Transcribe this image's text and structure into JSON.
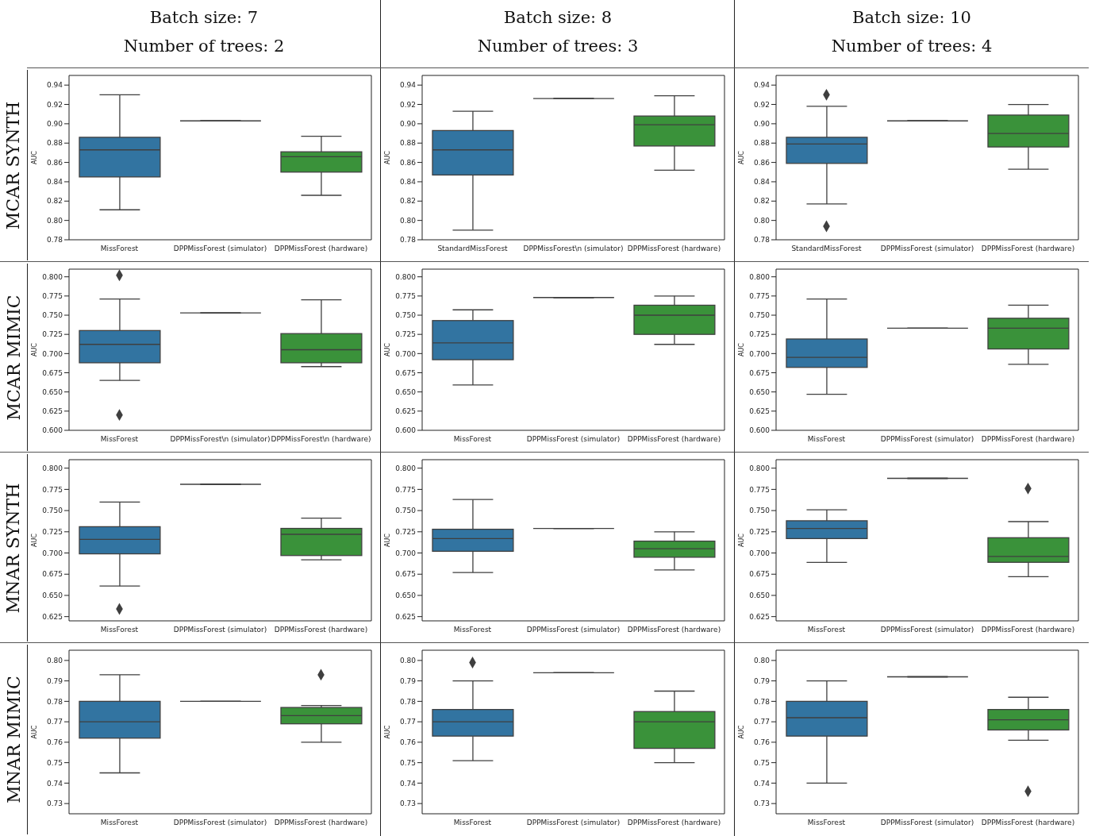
{
  "chart_data": [
    {
      "type": "box",
      "title": "Batch size: 7",
      "subtitle": "Number of trees: 2",
      "annotations": [
        "MCAR SYNTH"
      ],
      "ylabel": "AUC",
      "categories": [
        "MissForest",
        "DPPMissForest (simulator)",
        "DPPMissForest (hardware)"
      ],
      "colors": [
        "#3274a1",
        "#3f3f3f",
        "#3a923a"
      ],
      "ylim": [
        0.78,
        0.95
      ],
      "yticks": [
        0.78,
        {
          "value": 0.8,
          "label": "0.80"
        },
        0.82,
        0.84,
        0.86,
        0.88,
        {
          "value": 0.9,
          "label": "0.90"
        },
        0.92,
        0.94
      ],
      "boxes": [
        {
          "low": 0.811,
          "q1": 0.845,
          "median": 0.873,
          "q3": 0.886,
          "high": 0.93
        },
        {
          "low": 0.903,
          "q1": 0.903,
          "median": 0.903,
          "q3": 0.903,
          "high": 0.903
        },
        {
          "low": 0.826,
          "q1": 0.85,
          "median": 0.866,
          "q3": 0.871,
          "high": 0.887
        }
      ]
    },
    {
      "type": "box",
      "title": "Batch size: 8",
      "subtitle": "Number of trees: 3",
      "ylabel": "AUC",
      "categories": [
        "StandardMissForest",
        "DPPMissForest\\n (simulator)",
        "DPPMissForest (hardware)"
      ],
      "colors": [
        "#3274a1",
        "#3f3f3f",
        "#3a923a"
      ],
      "ylim": [
        0.78,
        0.95
      ],
      "yticks": [
        0.78,
        {
          "value": 0.8,
          "label": "0.80"
        },
        0.82,
        0.84,
        0.86,
        0.88,
        {
          "value": 0.9,
          "label": "0.90"
        },
        0.92,
        0.94
      ],
      "boxes": [
        {
          "low": 0.79,
          "q1": 0.847,
          "median": 0.873,
          "q3": 0.893,
          "high": 0.913
        },
        {
          "low": 0.926,
          "q1": 0.926,
          "median": 0.926,
          "q3": 0.926,
          "high": 0.926
        },
        {
          "low": 0.852,
          "q1": 0.877,
          "median": 0.899,
          "q3": 0.908,
          "high": 0.929
        }
      ]
    },
    {
      "type": "box",
      "title": "Batch size: 10",
      "subtitle": "Number of trees: 4",
      "ylabel": "AUC",
      "categories": [
        "StandardMissForest",
        "DPPMissForest (simulator)",
        "DPPMissForest (hardware)"
      ],
      "colors": [
        "#3274a1",
        "#3f3f3f",
        "#3a923a"
      ],
      "ylim": [
        0.78,
        0.95
      ],
      "yticks": [
        0.78,
        {
          "value": 0.8,
          "label": "0.80"
        },
        0.82,
        0.84,
        0.86,
        0.88,
        {
          "value": 0.9,
          "label": "0.90"
        },
        0.92,
        0.94
      ],
      "boxes": [
        {
          "low": 0.817,
          "q1": 0.859,
          "median": 0.879,
          "q3": 0.886,
          "high": 0.918,
          "outliers": [
            0.93,
            0.794
          ]
        },
        {
          "low": 0.903,
          "q1": 0.903,
          "median": 0.903,
          "q3": 0.903,
          "high": 0.903
        },
        {
          "low": 0.853,
          "q1": 0.876,
          "median": 0.89,
          "q3": 0.909,
          "high": 0.92
        }
      ]
    },
    {
      "type": "box",
      "annotations": [
        "MCAR MIMIC"
      ],
      "ylabel": "AUC",
      "categories": [
        "MissForest",
        "DPPMissForest\\n (simulator)",
        "DPPMissForest\\n (hardware)"
      ],
      "colors": [
        "#3274a1",
        "#3f3f3f",
        "#3a923a"
      ],
      "ylim": [
        0.6,
        0.81
      ],
      "yticks": [
        {
          "value": 0.6,
          "label": "0.600"
        },
        0.625,
        {
          "value": 0.65,
          "label": "0.650"
        },
        0.675,
        {
          "value": 0.7,
          "label": "0.700"
        },
        0.725,
        {
          "value": 0.75,
          "label": "0.750"
        },
        0.775,
        {
          "value": 0.8,
          "label": "0.800"
        }
      ],
      "boxes": [
        {
          "low": 0.665,
          "q1": 0.688,
          "median": 0.712,
          "q3": 0.73,
          "high": 0.771,
          "outliers": [
            0.802,
            0.62
          ]
        },
        {
          "low": 0.753,
          "q1": 0.753,
          "median": 0.753,
          "q3": 0.753,
          "high": 0.753
        },
        {
          "low": 0.683,
          "q1": 0.688,
          "median": 0.705,
          "q3": 0.726,
          "high": 0.77
        }
      ]
    },
    {
      "type": "box",
      "ylabel": "AUC",
      "categories": [
        "MissForest",
        "DPPMissForest (simulator)",
        "DPPMissForest (hardware)"
      ],
      "colors": [
        "#3274a1",
        "#3f3f3f",
        "#3a923a"
      ],
      "ylim": [
        0.6,
        0.81
      ],
      "yticks": [
        {
          "value": 0.6,
          "label": "0.600"
        },
        0.625,
        {
          "value": 0.65,
          "label": "0.650"
        },
        0.675,
        {
          "value": 0.7,
          "label": "0.700"
        },
        0.725,
        {
          "value": 0.75,
          "label": "0.750"
        },
        0.775,
        {
          "value": 0.8,
          "label": "0.800"
        }
      ],
      "boxes": [
        {
          "low": 0.659,
          "q1": 0.692,
          "median": 0.714,
          "q3": 0.743,
          "high": 0.757
        },
        {
          "low": 0.773,
          "q1": 0.773,
          "median": 0.773,
          "q3": 0.773,
          "high": 0.773
        },
        {
          "low": 0.712,
          "q1": 0.725,
          "median": 0.75,
          "q3": 0.763,
          "high": 0.775
        }
      ]
    },
    {
      "type": "box",
      "ylabel": "AUC",
      "categories": [
        "MissForest",
        "DPPMissForest (simulator)",
        "DPPMissForest (hardware)"
      ],
      "colors": [
        "#3274a1",
        "#3f3f3f",
        "#3a923a"
      ],
      "ylim": [
        0.6,
        0.81
      ],
      "yticks": [
        {
          "value": 0.6,
          "label": "0.600"
        },
        0.625,
        {
          "value": 0.65,
          "label": "0.650"
        },
        0.675,
        {
          "value": 0.7,
          "label": "0.700"
        },
        0.725,
        {
          "value": 0.75,
          "label": "0.750"
        },
        0.775,
        {
          "value": 0.8,
          "label": "0.800"
        }
      ],
      "boxes": [
        {
          "low": 0.647,
          "q1": 0.682,
          "median": 0.695,
          "q3": 0.719,
          "high": 0.771
        },
        {
          "low": 0.733,
          "q1": 0.733,
          "median": 0.733,
          "q3": 0.733,
          "high": 0.733
        },
        {
          "low": 0.686,
          "q1": 0.706,
          "median": 0.733,
          "q3": 0.746,
          "high": 0.763
        }
      ]
    },
    {
      "type": "box",
      "annotations": [
        "MNAR SYNTH"
      ],
      "ylabel": "AUC",
      "categories": [
        "MissForest",
        "DPPMissForest (simulator)",
        "DPPMissForest (hardware)"
      ],
      "colors": [
        "#3274a1",
        "#3f3f3f",
        "#3a923a"
      ],
      "ylim": [
        0.62,
        0.81
      ],
      "yticks": [
        0.625,
        {
          "value": 0.65,
          "label": "0.650"
        },
        0.675,
        {
          "value": 0.7,
          "label": "0.700"
        },
        0.725,
        {
          "value": 0.75,
          "label": "0.750"
        },
        0.775,
        {
          "value": 0.8,
          "label": "0.800"
        }
      ],
      "boxes": [
        {
          "low": 0.661,
          "q1": 0.699,
          "median": 0.716,
          "q3": 0.731,
          "high": 0.76,
          "outliers": [
            0.634
          ]
        },
        {
          "low": 0.781,
          "q1": 0.781,
          "median": 0.781,
          "q3": 0.781,
          "high": 0.781
        },
        {
          "low": 0.692,
          "q1": 0.697,
          "median": 0.722,
          "q3": 0.729,
          "high": 0.741
        }
      ]
    },
    {
      "type": "box",
      "ylabel": "AUC",
      "categories": [
        "MissForest",
        "DPPMissForest (simulator)",
        "DPPMissForest (hardware)"
      ],
      "colors": [
        "#3274a1",
        "#3f3f3f",
        "#3a923a"
      ],
      "ylim": [
        0.62,
        0.81
      ],
      "yticks": [
        0.625,
        {
          "value": 0.65,
          "label": "0.650"
        },
        0.675,
        {
          "value": 0.7,
          "label": "0.700"
        },
        0.725,
        {
          "value": 0.75,
          "label": "0.750"
        },
        0.775,
        {
          "value": 0.8,
          "label": "0.800"
        }
      ],
      "boxes": [
        {
          "low": 0.677,
          "q1": 0.702,
          "median": 0.717,
          "q3": 0.728,
          "high": 0.763
        },
        {
          "low": 0.729,
          "q1": 0.729,
          "median": 0.729,
          "q3": 0.729,
          "high": 0.729
        },
        {
          "low": 0.68,
          "q1": 0.695,
          "median": 0.705,
          "q3": 0.714,
          "high": 0.725
        }
      ]
    },
    {
      "type": "box",
      "ylabel": "AUC",
      "categories": [
        "MissForest",
        "DPPMissForest (simulator)",
        "DPPMissForest (hardware)"
      ],
      "colors": [
        "#3274a1",
        "#3f3f3f",
        "#3a923a"
      ],
      "ylim": [
        0.62,
        0.81
      ],
      "yticks": [
        0.625,
        {
          "value": 0.65,
          "label": "0.650"
        },
        0.675,
        {
          "value": 0.7,
          "label": "0.700"
        },
        0.725,
        {
          "value": 0.75,
          "label": "0.750"
        },
        0.775,
        {
          "value": 0.8,
          "label": "0.800"
        }
      ],
      "boxes": [
        {
          "low": 0.689,
          "q1": 0.717,
          "median": 0.729,
          "q3": 0.738,
          "high": 0.751
        },
        {
          "low": 0.788,
          "q1": 0.788,
          "median": 0.788,
          "q3": 0.788,
          "high": 0.788
        },
        {
          "low": 0.672,
          "q1": 0.689,
          "median": 0.696,
          "q3": 0.718,
          "high": 0.737,
          "outliers": [
            0.776
          ]
        }
      ]
    },
    {
      "type": "box",
      "annotations": [
        "MNAR MIMIC"
      ],
      "ylabel": "AUC",
      "categories": [
        "MissForest",
        "DPPMissForest (simulator)",
        "DPPMissForest (hardware)"
      ],
      "colors": [
        "#3274a1",
        "#3f3f3f",
        "#3a923a"
      ],
      "ylim": [
        0.725,
        0.805
      ],
      "yticks": [
        0.73,
        0.74,
        0.75,
        0.76,
        0.77,
        0.78,
        0.79,
        {
          "value": 0.8,
          "label": "0.80"
        }
      ],
      "boxes": [
        {
          "low": 0.745,
          "q1": 0.762,
          "median": 0.77,
          "q3": 0.78,
          "high": 0.793
        },
        {
          "low": 0.78,
          "q1": 0.78,
          "median": 0.78,
          "q3": 0.78,
          "high": 0.78
        },
        {
          "low": 0.76,
          "q1": 0.769,
          "median": 0.773,
          "q3": 0.777,
          "high": 0.778,
          "outliers": [
            0.793
          ]
        }
      ]
    },
    {
      "type": "box",
      "ylabel": "AUC",
      "categories": [
        "MissForest",
        "DPPMissForest (simulator)",
        "DPPMissForest (hardware)"
      ],
      "colors": [
        "#3274a1",
        "#3f3f3f",
        "#3a923a"
      ],
      "ylim": [
        0.725,
        0.805
      ],
      "yticks": [
        0.73,
        0.74,
        0.75,
        0.76,
        0.77,
        0.78,
        0.79,
        {
          "value": 0.8,
          "label": "0.80"
        }
      ],
      "boxes": [
        {
          "low": 0.751,
          "q1": 0.763,
          "median": 0.77,
          "q3": 0.776,
          "high": 0.79,
          "outliers": [
            0.799
          ]
        },
        {
          "low": 0.794,
          "q1": 0.794,
          "median": 0.794,
          "q3": 0.794,
          "high": 0.794
        },
        {
          "low": 0.75,
          "q1": 0.757,
          "median": 0.77,
          "q3": 0.775,
          "high": 0.785
        }
      ]
    },
    {
      "type": "box",
      "ylabel": "AUC",
      "categories": [
        "MissForest",
        "DPPMissForest (simulator)",
        "DPPMissForest (hardware)"
      ],
      "colors": [
        "#3274a1",
        "#3f3f3f",
        "#3a923a"
      ],
      "ylim": [
        0.725,
        0.805
      ],
      "yticks": [
        0.73,
        0.74,
        0.75,
        0.76,
        0.77,
        0.78,
        0.79,
        {
          "value": 0.8,
          "label": "0.80"
        }
      ],
      "boxes": [
        {
          "low": 0.74,
          "q1": 0.763,
          "median": 0.772,
          "q3": 0.78,
          "high": 0.79
        },
        {
          "low": 0.792,
          "q1": 0.792,
          "median": 0.792,
          "q3": 0.792,
          "high": 0.792
        },
        {
          "low": 0.761,
          "q1": 0.766,
          "median": 0.771,
          "q3": 0.776,
          "high": 0.782,
          "outliers": [
            0.736
          ]
        }
      ]
    }
  ]
}
